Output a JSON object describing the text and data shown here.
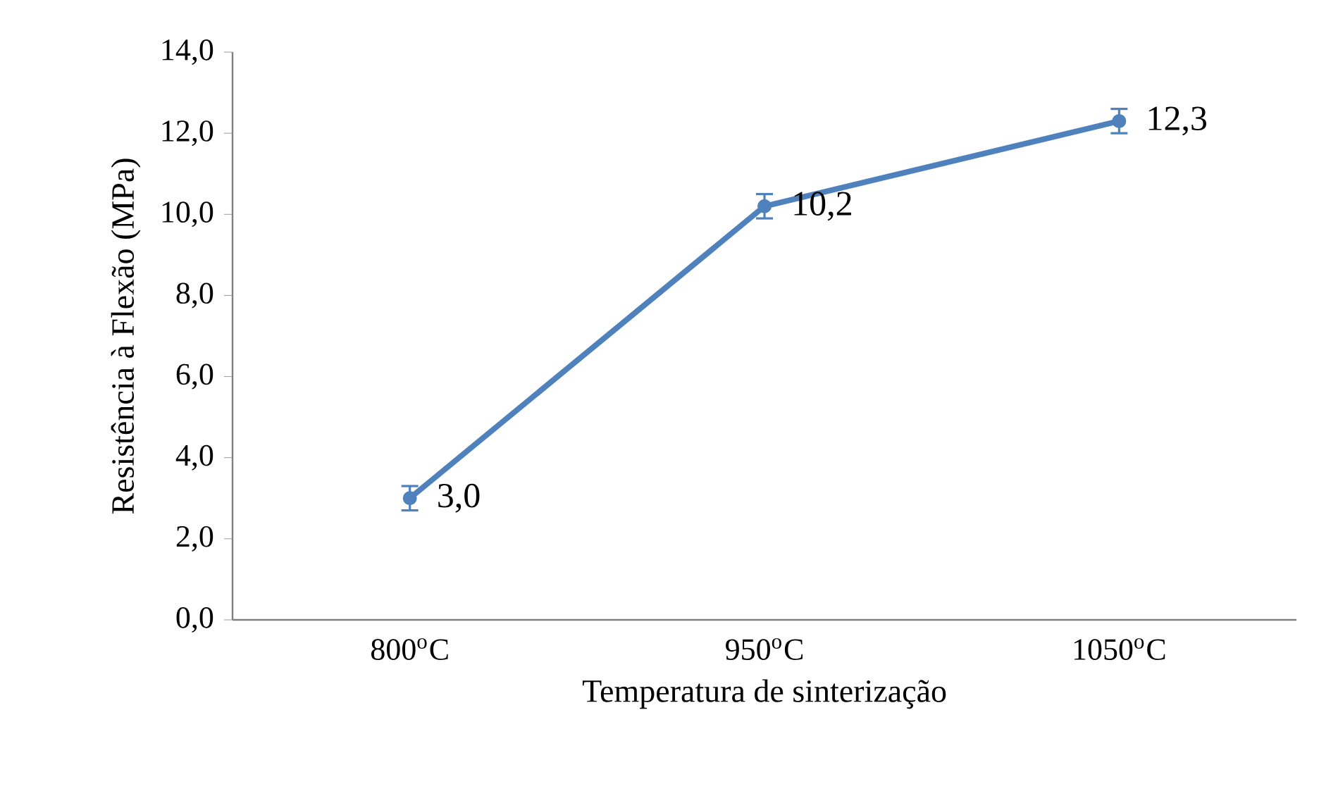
{
  "chart_data": {
    "type": "line",
    "categories": [
      "800$^{o}$C",
      "950$^{o}$C",
      "1050$^{o}$C"
    ],
    "xlabel": "Temperatura de sinterização",
    "ylabel": "Resistência à Flexão (MPa)",
    "series": [
      {
        "color": "#4f81bd",
        "values": [
          3.0,
          10.2,
          12.3
        ],
        "errors": [
          0.3,
          0.3,
          0.3
        ],
        "value_labels": [
          "3,0",
          "10,2",
          "12,3"
        ]
      }
    ],
    "ylim": [
      0,
      14
    ],
    "yticks": [
      {
        "value": 0,
        "label": "0,0"
      },
      {
        "value": 2,
        "label": "2,0"
      },
      {
        "value": 4,
        "label": "4,0"
      },
      {
        "value": 6,
        "label": "6,0"
      },
      {
        "value": 8,
        "label": "8,0"
      },
      {
        "value": 10,
        "label": "10,0"
      },
      {
        "value": 12,
        "label": "12,0"
      },
      {
        "value": 14,
        "label": "14,0"
      }
    ],
    "grid": false,
    "marker": "circle",
    "line_style": "solid"
  }
}
